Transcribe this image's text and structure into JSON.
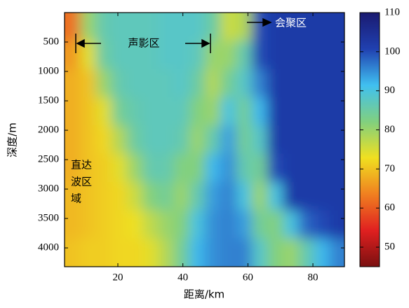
{
  "chart_data": {
    "type": "heatmap",
    "x_label": "距离/km",
    "y_label": "深度/m",
    "xlim": [
      3.6,
      89.7
    ],
    "xticks": [
      20,
      40,
      60,
      80
    ],
    "ylim": [
      0,
      4320
    ],
    "yticks": [
      500,
      1000,
      1500,
      2000,
      2500,
      3000,
      3500,
      4000
    ],
    "y_inverted": true,
    "clim": [
      45,
      110
    ],
    "cticks": [
      50,
      60,
      70,
      80,
      90,
      100,
      110
    ],
    "colormap": [
      "#7a1010",
      "#e02020",
      "#f08020",
      "#f0e020",
      "#80d080",
      "#40c0f0",
      "#2040b0",
      "#1a1a70"
    ],
    "x": [
      6,
      10.8,
      15.6,
      20.4,
      25.2,
      30,
      34.8,
      39.6,
      44.4,
      49.2,
      54,
      58.8,
      63.6,
      68.4,
      73.2,
      78,
      82.8,
      87.6
    ],
    "y": [
      240,
      720,
      1200,
      1680,
      2160,
      2640,
      3120,
      3600,
      4080
    ],
    "values": [
      [
        62,
        80,
        86,
        87,
        87,
        87,
        88,
        88,
        88,
        85,
        76,
        78,
        100,
        102,
        102,
        102,
        102,
        102
      ],
      [
        66,
        74,
        85,
        87,
        87,
        87,
        88,
        88,
        87,
        80,
        80,
        86,
        100,
        102,
        102,
        102,
        102,
        102
      ],
      [
        68,
        70,
        80,
        86,
        87,
        87,
        87,
        88,
        85,
        78,
        84,
        88,
        96,
        102,
        102,
        102,
        102,
        102
      ],
      [
        68,
        70,
        74,
        84,
        86,
        87,
        87,
        87,
        82,
        80,
        90,
        84,
        92,
        102,
        102,
        102,
        102,
        102
      ],
      [
        68,
        70,
        72,
        78,
        85,
        87,
        87,
        86,
        80,
        86,
        94,
        84,
        88,
        102,
        102,
        102,
        102,
        102
      ],
      [
        68,
        70,
        71,
        74,
        80,
        86,
        86,
        82,
        82,
        92,
        95,
        86,
        84,
        100,
        102,
        102,
        102,
        102
      ],
      [
        69,
        70,
        71,
        72,
        76,
        82,
        84,
        80,
        86,
        94,
        96,
        90,
        80,
        90,
        102,
        102,
        102,
        102
      ],
      [
        69,
        70,
        71,
        72,
        73,
        77,
        80,
        82,
        90,
        95,
        96,
        94,
        84,
        82,
        90,
        98,
        100,
        102
      ],
      [
        70,
        71,
        71,
        72,
        72,
        74,
        78,
        84,
        92,
        95,
        96,
        96,
        88,
        82,
        80,
        86,
        92,
        96
      ]
    ],
    "annotations": {
      "shadow_zone": "声影区",
      "convergence_zone": "会聚区",
      "direct_zone": [
        "直达",
        "波区",
        "域"
      ]
    }
  }
}
